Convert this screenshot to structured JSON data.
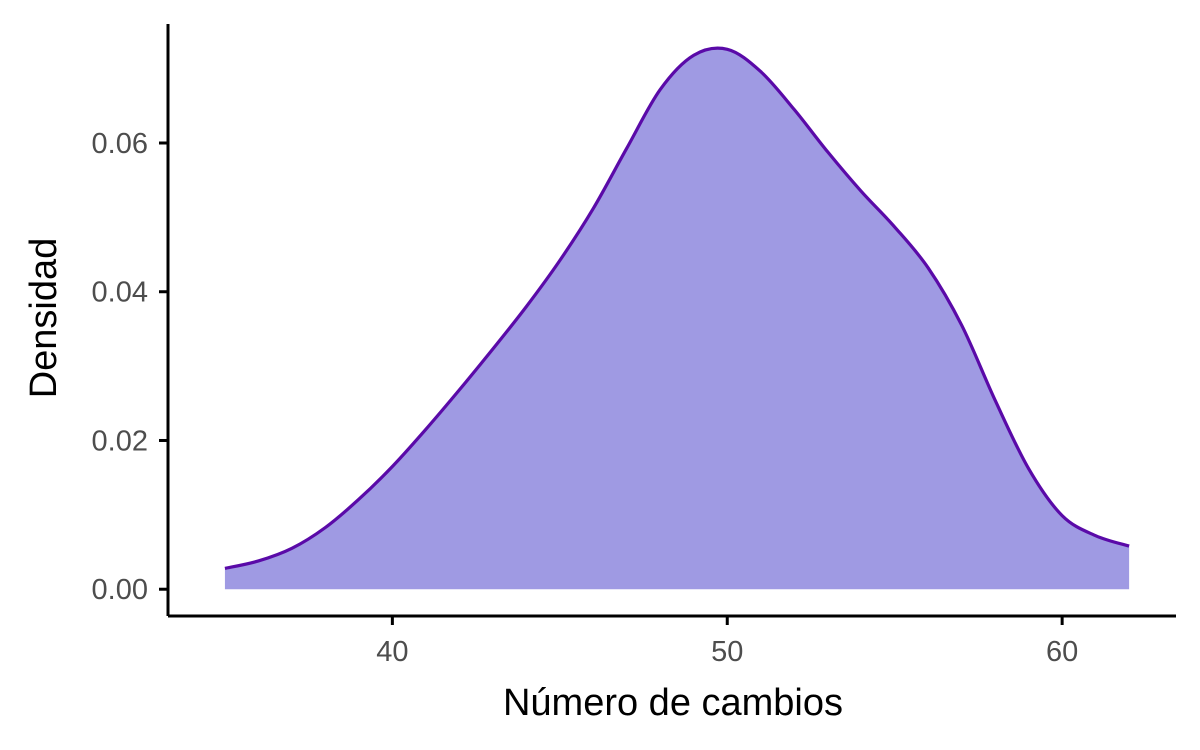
{
  "chart_data": {
    "type": "area",
    "xlabel": "Número de cambios",
    "ylabel": "Densidad",
    "xlim": [
      33.3,
      63.4
    ],
    "ylim": [
      -0.0036,
      0.076
    ],
    "x_ticks": [
      {
        "value": 40,
        "label": "40"
      },
      {
        "value": 50,
        "label": "50"
      },
      {
        "value": 60,
        "label": "60"
      }
    ],
    "y_ticks": [
      {
        "value": 0.0,
        "label": "0.00"
      },
      {
        "value": 0.02,
        "label": "0.02"
      },
      {
        "value": 0.04,
        "label": "0.04"
      },
      {
        "value": 0.06,
        "label": "0.06"
      }
    ],
    "grid": false,
    "legend": "none",
    "series": [
      {
        "x": [
          35,
          36,
          37,
          38,
          39,
          40,
          41,
          42,
          43,
          44,
          45,
          46,
          47,
          48,
          49,
          50,
          51,
          52,
          53,
          54,
          55,
          56,
          57,
          58,
          59,
          60,
          61,
          62
        ],
        "y": [
          0.0028,
          0.0038,
          0.0055,
          0.0083,
          0.0121,
          0.0165,
          0.0215,
          0.0268,
          0.0323,
          0.038,
          0.0442,
          0.0512,
          0.0593,
          0.0672,
          0.0718,
          0.0726,
          0.0696,
          0.0645,
          0.0588,
          0.0535,
          0.0487,
          0.0432,
          0.0355,
          0.0254,
          0.0162,
          0.0099,
          0.0072,
          0.0058
        ],
        "fill": "#9f9ae3",
        "stroke": "#5a0aa8"
      }
    ]
  }
}
